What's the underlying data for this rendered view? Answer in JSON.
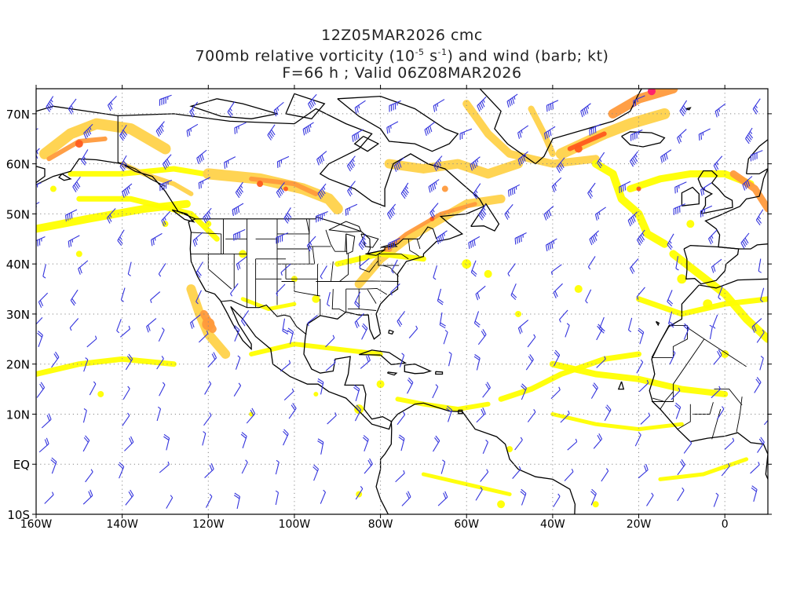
{
  "title": {
    "line1": "12Z05MAR2026 cmc",
    "line2_pre": "700mb relative vorticity (10",
    "line2_exp1": "-5",
    "line2_mid": " s",
    "line2_exp2": "-1",
    "line2_post": ") and wind (barb; kt)",
    "line3": "F=66 h ; Valid 06Z08MAR2026"
  },
  "map": {
    "lon_range": [
      -160,
      10
    ],
    "lat_range": [
      -10,
      75
    ],
    "lat_labels": [
      {
        "value": 70,
        "text": "70N"
      },
      {
        "value": 60,
        "text": "60N"
      },
      {
        "value": 50,
        "text": "50N"
      },
      {
        "value": 40,
        "text": "40N"
      },
      {
        "value": 30,
        "text": "30N"
      },
      {
        "value": 20,
        "text": "20N"
      },
      {
        "value": 10,
        "text": "10N"
      },
      {
        "value": 0,
        "text": "EQ"
      },
      {
        "value": -10,
        "text": "10S"
      }
    ],
    "lon_labels": [
      {
        "value": -160,
        "text": "160W"
      },
      {
        "value": -140,
        "text": "140W"
      },
      {
        "value": -120,
        "text": "120W"
      },
      {
        "value": -100,
        "text": "100W"
      },
      {
        "value": -80,
        "text": "80W"
      },
      {
        "value": -60,
        "text": "60W"
      },
      {
        "value": -40,
        "text": "40W"
      },
      {
        "value": -20,
        "text": "20W"
      },
      {
        "value": 0,
        "text": "0"
      }
    ],
    "grid": "dotted",
    "colors": {
      "low": "#ffff00",
      "medium": "#ffd24a",
      "high": "#ff9a3c",
      "strong": "#ff5a1e",
      "extreme": "#ff1c6e",
      "barb": "#3333dd",
      "coast": "#000000",
      "grid": "#888888"
    }
  }
}
